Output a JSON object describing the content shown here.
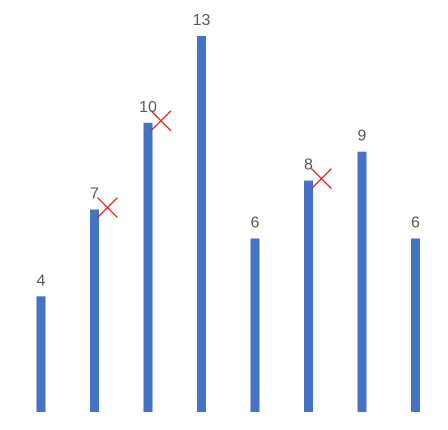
{
  "chart_data": {
    "type": "bar",
    "categories": [
      "",
      "",
      "",
      "",
      "",
      "",
      "",
      ""
    ],
    "values": [
      4,
      7,
      10,
      13,
      6,
      8,
      9,
      6
    ],
    "data_labels": [
      "4",
      "7",
      "10",
      "13",
      "6",
      "8",
      "9",
      "6"
    ],
    "marked_indices": [
      1,
      2,
      5
    ],
    "marker": "red-x-mark",
    "title": "",
    "xlabel": "",
    "ylabel": "",
    "ylim": [
      0,
      13
    ],
    "grid": false,
    "legend": "none",
    "axes_visible": false
  },
  "colors": {
    "bar": "#4472C4",
    "label": "#595959",
    "mark": "#E0241B"
  }
}
